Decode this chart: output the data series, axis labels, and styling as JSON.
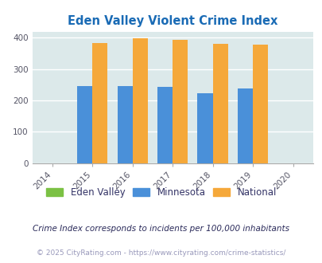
{
  "title": "Eden Valley Violent Crime Index",
  "years": [
    2014,
    2015,
    2016,
    2017,
    2018,
    2019,
    2020
  ],
  "eden_valley": [
    0,
    0,
    0,
    0,
    0,
    0,
    0
  ],
  "minnesota": [
    0,
    246,
    246,
    243,
    222,
    239,
    0
  ],
  "national": [
    0,
    384,
    399,
    394,
    382,
    379,
    0
  ],
  "bar_width": 0.38,
  "colors": {
    "eden_valley": "#7bc144",
    "minnesota": "#4a90d9",
    "national": "#f5a83a"
  },
  "legend_labels": [
    "Eden Valley",
    "Minnesota",
    "National"
  ],
  "footnote1": "Crime Index corresponds to incidents per 100,000 inhabitants",
  "footnote2": "© 2025 CityRating.com - https://www.cityrating.com/crime-statistics/",
  "xlim": [
    2013.5,
    2020.5
  ],
  "ylim": [
    0,
    420
  ],
  "yticks": [
    0,
    100,
    200,
    300,
    400
  ],
  "bg_color": "#dce9ea",
  "title_color": "#1a6bb5",
  "footnote1_color": "#2a2a5a",
  "footnote2_color": "#9999bb",
  "grid_color": "#ffffff"
}
